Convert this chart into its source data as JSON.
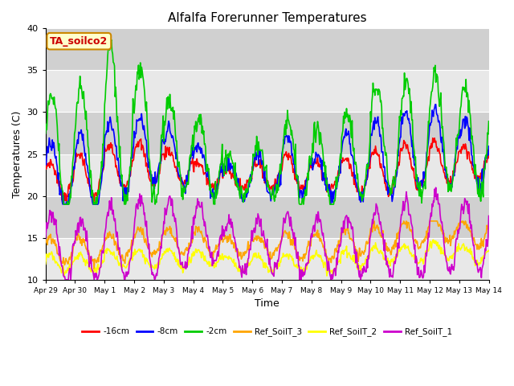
{
  "title": "Alfalfa Forerunner Temperatures",
  "xlabel": "Time",
  "ylabel": "Temperatures (C)",
  "ylim": [
    10,
    40
  ],
  "xlim": [
    0,
    15
  ],
  "background_color": "#ffffff",
  "plot_bg_color": "#e8e8e8",
  "grid_band_light": "#e8e8e8",
  "grid_band_dark": "#d0d0d0",
  "series": {
    "neg16cm": {
      "color": "#ff0000",
      "label": "-16cm",
      "linewidth": 1.2
    },
    "neg8cm": {
      "color": "#0000ff",
      "label": "-8cm",
      "linewidth": 1.2
    },
    "neg2cm": {
      "color": "#00cc00",
      "label": "-2cm",
      "linewidth": 1.2
    },
    "ref3": {
      "color": "#ffa500",
      "label": "Ref_SoilT_3",
      "linewidth": 1.2
    },
    "ref2": {
      "color": "#ffff00",
      "label": "Ref_SoilT_2",
      "linewidth": 1.2
    },
    "ref1": {
      "color": "#cc00cc",
      "label": "Ref_SoilT_1",
      "linewidth": 1.2
    }
  },
  "xtick_labels": [
    "Apr 29",
    "Apr 30",
    "May 1",
    "May 2",
    "May 3",
    "May 4",
    "May 5",
    "May 6",
    "May 7",
    "May 8",
    "May 9",
    "May 10",
    "May 11",
    "May 12",
    "May 13",
    "May 14"
  ],
  "xtick_positions": [
    0,
    1,
    2,
    3,
    4,
    5,
    6,
    7,
    8,
    9,
    10,
    11,
    12,
    13,
    14,
    15
  ],
  "ytick_positions": [
    10,
    15,
    20,
    25,
    30,
    35,
    40
  ],
  "annotation_text": "TA_soilco2",
  "annotation_color": "#cc0000",
  "annotation_bg": "#ffffcc",
  "annotation_border": "#cc8800"
}
